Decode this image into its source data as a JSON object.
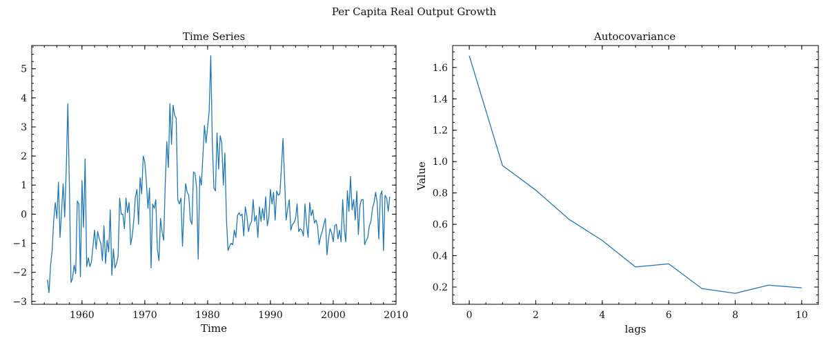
{
  "figure": {
    "suptitle": "Per Capita Real Output Growth"
  },
  "colors": {
    "series": "#1f77b4",
    "axis": "#000000",
    "text": "#111111"
  },
  "chart_data": [
    {
      "type": "line",
      "title": "Time Series",
      "xlabel": "Time",
      "ylabel": "",
      "xlim": [
        1952,
        2010
      ],
      "ylim": [
        -3.1,
        5.8
      ],
      "xticks": [
        1960,
        1970,
        1980,
        1990,
        2000,
        2010
      ],
      "yticks": [
        -3,
        -2,
        -1,
        0,
        1,
        2,
        3,
        4,
        5
      ],
      "xtick_labels": [
        "1960",
        "1970",
        "1980",
        "1990",
        "2000",
        "2010"
      ],
      "ytick_labels": [
        "−3",
        "−2",
        "−1",
        "0",
        "1",
        "2",
        "3",
        "4",
        "5"
      ],
      "grid": false,
      "series": [
        {
          "name": "Per Capita Real Output Growth",
          "x_start": 1954.5,
          "x_step": 0.25,
          "values": [
            -2.25,
            -2.7,
            -1.75,
            -1.25,
            -0.2,
            0.4,
            -0.15,
            1.1,
            -0.8,
            0.1,
            1.05,
            -0.1,
            1.6,
            3.8,
            0.9,
            -2.35,
            -2.2,
            -1.75,
            -2.05,
            0.45,
            0.35,
            -2.15,
            1.15,
            -0.45,
            1.9,
            -1.8,
            -1.5,
            -1.8,
            -1.65,
            -1.1,
            -0.55,
            -1.2,
            -0.6,
            -0.85,
            -1.0,
            -1.6,
            -0.4,
            -1.7,
            -0.9,
            -1.3,
            0.15,
            -2.1,
            -1.2,
            -1.85,
            -1.7,
            -1.45,
            0.55,
            0.0,
            0.0,
            -0.5,
            0.55,
            0.05,
            0.4,
            -1.05,
            -0.75,
            -0.2,
            0.6,
            0.85,
            -0.35,
            1.25,
            0.7,
            2.0,
            1.8,
            1.1,
            0.2,
            0.9,
            -1.85,
            0.35,
            0.2,
            0.5,
            -1.2,
            -1.6,
            -0.15,
            -0.6,
            -0.9,
            1.0,
            2.5,
            1.6,
            3.8,
            2.4,
            3.75,
            3.4,
            3.3,
            0.5,
            0.35,
            0.55,
            -1.1,
            0.2,
            1.05,
            0.75,
            0.65,
            -0.2,
            -0.35,
            1.45,
            1.4,
            0.9,
            -1.55,
            1.3,
            1.0,
            2.0,
            3.05,
            2.45,
            3.0,
            3.55,
            5.45,
            2.5,
            0.9,
            0.8,
            2.8,
            1.55,
            2.7,
            2.45,
            1.0,
            2.1,
            -0.2,
            -1.25,
            -1.1,
            -1.0,
            -1.05,
            -0.55,
            -0.8,
            -0.05,
            0.05,
            -0.05,
            0.0,
            -0.75,
            0.25,
            -0.05,
            -0.6,
            -0.35,
            -0.25,
            0.5,
            -0.25,
            -0.05,
            -0.8,
            0.25,
            -0.25,
            0.2,
            -0.2,
            0.6,
            -0.4,
            -0.1,
            0.85,
            0.35,
            0.75,
            -0.2,
            0.8,
            0.65,
            0.7,
            1.6,
            2.6,
            1.2,
            -0.2,
            0.2,
            0.5,
            -0.55,
            -0.35,
            -0.3,
            -0.15,
            0.35,
            -0.6,
            -0.5,
            -0.55,
            -0.75,
            0.35,
            -0.35,
            -0.8,
            0.4,
            -0.05,
            0.15,
            -0.3,
            -0.2,
            -0.4,
            -1.05,
            -0.75,
            -0.6,
            -0.35,
            -0.15,
            -1.4,
            -0.85,
            -0.5,
            -0.65,
            -0.95,
            -0.4,
            -0.35,
            -0.85,
            -0.55,
            -0.95,
            0.5,
            -0.5,
            -0.95,
            0.8,
            0.1,
            1.3,
            0.15,
            0.5,
            -0.2,
            0.8,
            -0.7,
            0.3,
            0.5,
            0.5,
            -1.05,
            -0.9,
            -0.8,
            -0.4,
            -0.25,
            0.2,
            0.4,
            0.75,
            0.4,
            -0.85,
            0.65,
            0.8,
            -1.25,
            0.65,
            0.55,
            0.1,
            0.6
          ]
        }
      ]
    },
    {
      "type": "line",
      "title": "Autocovariance",
      "xlabel": "lags",
      "ylabel": "Value",
      "xlim": [
        -0.5,
        10.5
      ],
      "ylim": [
        0.09,
        1.74
      ],
      "xticks": [
        0,
        2,
        4,
        6,
        8,
        10
      ],
      "yticks": [
        0.2,
        0.4,
        0.6,
        0.8,
        1.0,
        1.2,
        1.4,
        1.6
      ],
      "xtick_labels": [
        "0",
        "2",
        "4",
        "6",
        "8",
        "10"
      ],
      "ytick_labels": [
        "0.2",
        "0.4",
        "0.6",
        "0.8",
        "1.0",
        "1.2",
        "1.4",
        "1.6"
      ],
      "grid": false,
      "series": [
        {
          "name": "Autocovariance",
          "x": [
            0,
            1,
            2,
            3,
            4,
            5,
            6,
            7,
            8,
            9,
            10
          ],
          "values": [
            1.675,
            0.975,
            0.818,
            0.632,
            0.497,
            0.328,
            0.348,
            0.19,
            0.16,
            0.212,
            0.195
          ]
        }
      ]
    }
  ]
}
